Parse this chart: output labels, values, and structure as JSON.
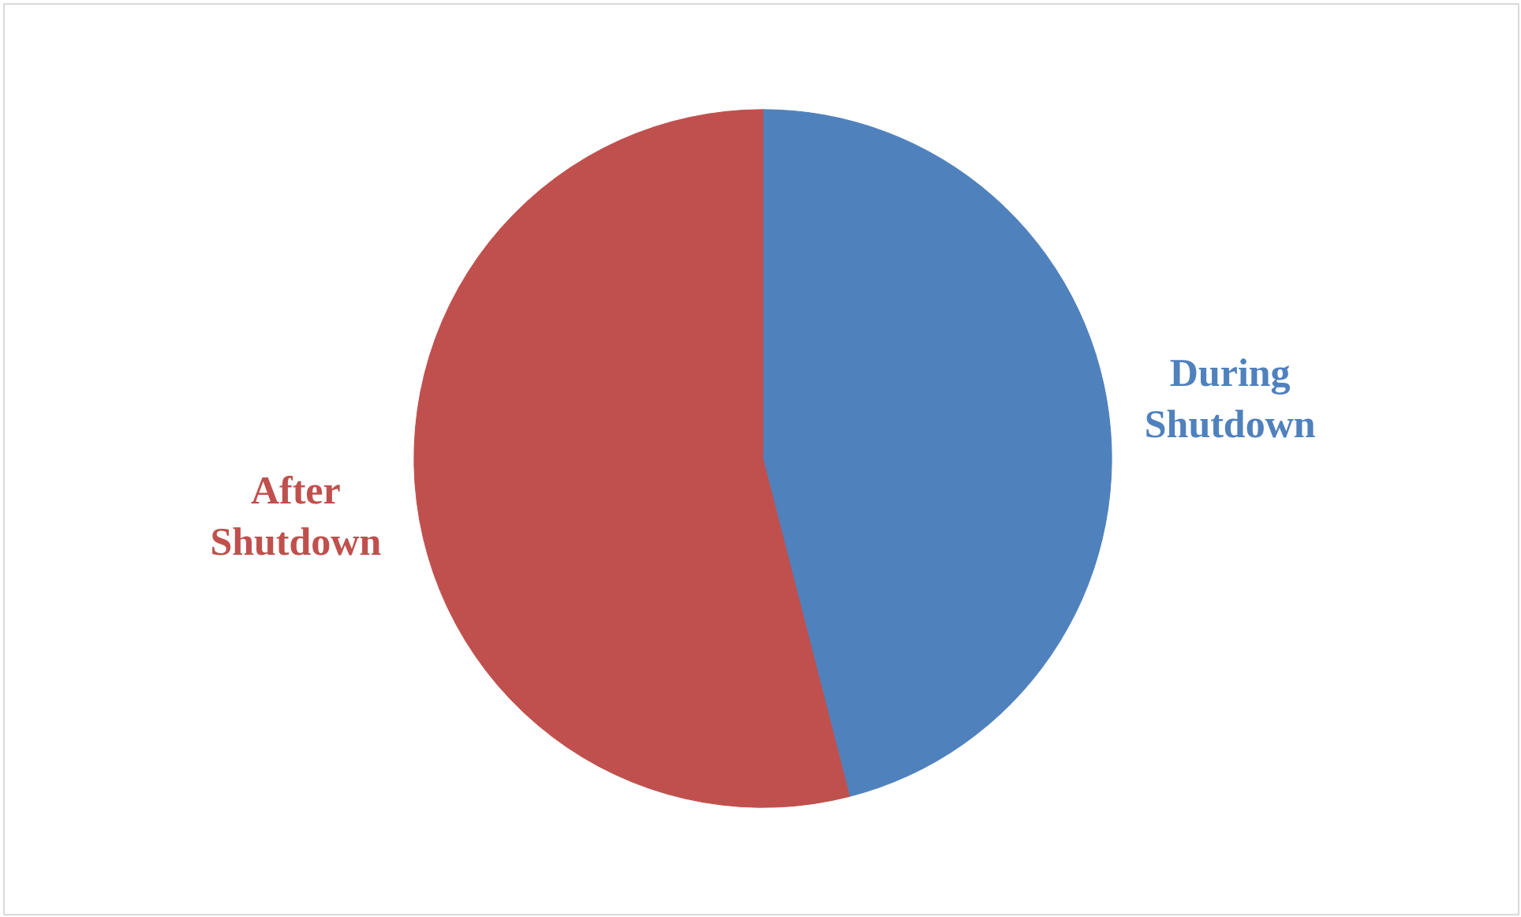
{
  "chart_data": {
    "type": "pie",
    "categories": [
      "During Shutdown",
      "After Shutdown"
    ],
    "values": [
      46,
      54
    ],
    "colors": [
      "#4f81bd",
      "#c0504d"
    ]
  }
}
